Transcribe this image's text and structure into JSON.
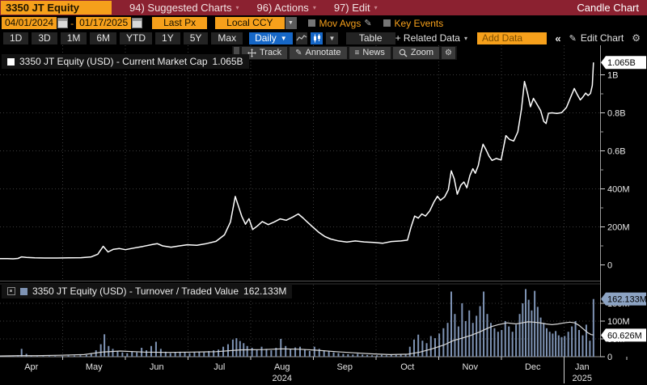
{
  "titlebar": {
    "ticker": "3350 JT Equity",
    "menus": [
      "94) Suggested Charts",
      "96) Actions",
      "97) Edit"
    ],
    "right_label": "Candle Chart"
  },
  "controls": {
    "date_from": "04/01/2024",
    "date_sep": "-",
    "date_to": "01/17/2025",
    "price_field": "Last Px",
    "currency": "Local CCY",
    "mov_avgs": "Mov Avgs",
    "key_events": "Key Events"
  },
  "ranges": [
    "1D",
    "3D",
    "1M",
    "6M",
    "YTD",
    "1Y",
    "5Y",
    "Max"
  ],
  "frequency": "Daily",
  "table_label": "Table",
  "related_data": "+ Related Data",
  "add_data_placeholder": "Add Data",
  "collapse_label": "«",
  "edit_chart_label": "Edit Chart",
  "chart_tools": {
    "track": "Track",
    "annotate": "Annotate",
    "news": "News",
    "zoom": "Zoom"
  },
  "icons": {
    "dropdown": "▾",
    "dropdown_solid": "▼",
    "pencil": "✎",
    "gear": "⚙",
    "news_lines": "≡",
    "collapse": "«"
  },
  "main_panel": {
    "legend_text": "3350 JT Equity (USD) - Current Market Cap",
    "legend_value": "1.065B",
    "last_badge": "1.065B"
  },
  "volume_panel": {
    "legend_text": "3350 JT Equity (USD) - Turnover / Traded Value",
    "legend_value": "162.133M",
    "last_badge": "162.133M",
    "ma_badge": "60.626M"
  },
  "chart_data": [
    {
      "type": "line",
      "title": "3350 JT Equity (USD) - Current Market Cap",
      "unit": "USD, millions",
      "x_range": [
        "04/01/2024",
        "01/17/2025"
      ],
      "ylim": [
        0,
        1100
      ],
      "grid": true,
      "last_value": 1065,
      "last_value_label": "1.065B",
      "months": [
        "Apr",
        "May",
        "Jun",
        "Jul",
        "Aug",
        "Sep",
        "Oct",
        "Nov",
        "Dec",
        "Jan"
      ],
      "year_labels": [
        {
          "month_index": 4,
          "label": "2024"
        },
        {
          "month_index": 9,
          "label": "2025"
        }
      ],
      "y_ticks": [
        {
          "value": 1000,
          "label": "1B"
        },
        {
          "value": 800,
          "label": "0.8B"
        },
        {
          "value": 600,
          "label": "0.6B"
        },
        {
          "value": 400,
          "label": "400M"
        },
        {
          "value": 200,
          "label": "200M"
        },
        {
          "value": 0,
          "label": "0"
        }
      ],
      "y_minor_ticks": [
        100,
        300,
        500,
        700,
        900
      ],
      "points": [
        [
          0.0,
          33
        ],
        [
          0.012,
          33
        ],
        [
          0.022,
          32
        ],
        [
          0.03,
          34
        ],
        [
          0.036,
          42
        ],
        [
          0.044,
          39
        ],
        [
          0.058,
          37
        ],
        [
          0.075,
          36
        ],
        [
          0.095,
          36
        ],
        [
          0.115,
          37
        ],
        [
          0.135,
          38
        ],
        [
          0.152,
          42
        ],
        [
          0.163,
          56
        ],
        [
          0.172,
          98
        ],
        [
          0.18,
          68
        ],
        [
          0.189,
          82
        ],
        [
          0.199,
          86
        ],
        [
          0.209,
          80
        ],
        [
          0.222,
          88
        ],
        [
          0.238,
          97
        ],
        [
          0.255,
          108
        ],
        [
          0.262,
          112
        ],
        [
          0.271,
          100
        ],
        [
          0.285,
          93
        ],
        [
          0.299,
          100
        ],
        [
          0.312,
          106
        ],
        [
          0.328,
          103
        ],
        [
          0.344,
          112
        ],
        [
          0.36,
          124
        ],
        [
          0.374,
          158
        ],
        [
          0.384,
          225
        ],
        [
          0.392,
          360
        ],
        [
          0.397,
          312
        ],
        [
          0.403,
          255
        ],
        [
          0.409,
          214
        ],
        [
          0.415,
          243
        ],
        [
          0.421,
          186
        ],
        [
          0.429,
          205
        ],
        [
          0.437,
          228
        ],
        [
          0.447,
          212
        ],
        [
          0.457,
          226
        ],
        [
          0.467,
          242
        ],
        [
          0.477,
          235
        ],
        [
          0.488,
          252
        ],
        [
          0.497,
          268
        ],
        [
          0.505,
          247
        ],
        [
          0.512,
          226
        ],
        [
          0.522,
          197
        ],
        [
          0.531,
          172
        ],
        [
          0.541,
          150
        ],
        [
          0.551,
          136
        ],
        [
          0.563,
          127
        ],
        [
          0.578,
          120
        ],
        [
          0.592,
          126
        ],
        [
          0.607,
          121
        ],
        [
          0.623,
          118
        ],
        [
          0.638,
          114
        ],
        [
          0.652,
          123
        ],
        [
          0.668,
          126
        ],
        [
          0.679,
          130
        ],
        [
          0.685,
          200
        ],
        [
          0.691,
          257
        ],
        [
          0.697,
          246
        ],
        [
          0.703,
          268
        ],
        [
          0.709,
          257
        ],
        [
          0.716,
          284
        ],
        [
          0.723,
          330
        ],
        [
          0.729,
          361
        ],
        [
          0.734,
          340
        ],
        [
          0.741,
          358
        ],
        [
          0.747,
          395
        ],
        [
          0.752,
          495
        ],
        [
          0.757,
          452
        ],
        [
          0.762,
          372
        ],
        [
          0.768,
          420
        ],
        [
          0.773,
          436
        ],
        [
          0.778,
          406
        ],
        [
          0.783,
          470
        ],
        [
          0.788,
          506
        ],
        [
          0.792,
          482
        ],
        [
          0.797,
          523
        ],
        [
          0.801,
          585
        ],
        [
          0.805,
          635
        ],
        [
          0.81,
          606
        ],
        [
          0.815,
          572
        ],
        [
          0.82,
          550
        ],
        [
          0.827,
          560
        ],
        [
          0.835,
          552
        ],
        [
          0.843,
          680
        ],
        [
          0.849,
          660
        ],
        [
          0.856,
          652
        ],
        [
          0.863,
          700
        ],
        [
          0.869,
          820
        ],
        [
          0.874,
          965
        ],
        [
          0.879,
          905
        ],
        [
          0.884,
          832
        ],
        [
          0.889,
          876
        ],
        [
          0.893,
          855
        ],
        [
          0.897,
          833
        ],
        [
          0.901,
          812
        ],
        [
          0.906,
          755
        ],
        [
          0.91,
          744
        ],
        [
          0.914,
          798
        ],
        [
          0.92,
          800
        ],
        [
          0.928,
          797
        ],
        [
          0.936,
          801
        ],
        [
          0.944,
          828
        ],
        [
          0.951,
          882
        ],
        [
          0.957,
          928
        ],
        [
          0.962,
          896
        ],
        [
          0.967,
          868
        ],
        [
          0.971,
          882
        ],
        [
          0.976,
          904
        ],
        [
          0.98,
          891
        ],
        [
          0.984,
          902
        ],
        [
          0.987,
          945
        ],
        [
          0.989,
          1065
        ]
      ]
    },
    {
      "type": "bar",
      "title": "3350 JT Equity (USD) - Turnover / Traded Value",
      "unit": "USD, millions",
      "ylim": [
        0,
        200
      ],
      "grid": true,
      "last_value": 162.133,
      "last_value_label": "162.133M",
      "ma_last_value": 60.626,
      "ma_last_label": "60.626M",
      "y_ticks": [
        {
          "value": 150,
          "label": "150M"
        },
        {
          "value": 100,
          "label": "100M"
        },
        {
          "value": 50,
          "label": "50M"
        },
        {
          "value": 0,
          "label": "0"
        }
      ],
      "bars": [
        [
          0.002,
          2
        ],
        [
          0.012,
          3
        ],
        [
          0.022,
          2
        ],
        [
          0.03,
          4
        ],
        [
          0.036,
          22
        ],
        [
          0.044,
          8
        ],
        [
          0.052,
          3
        ],
        [
          0.062,
          2
        ],
        [
          0.072,
          2
        ],
        [
          0.082,
          2
        ],
        [
          0.092,
          2
        ],
        [
          0.104,
          2
        ],
        [
          0.114,
          3
        ],
        [
          0.124,
          3
        ],
        [
          0.134,
          4
        ],
        [
          0.144,
          5
        ],
        [
          0.152,
          8
        ],
        [
          0.16,
          18
        ],
        [
          0.168,
          35
        ],
        [
          0.174,
          63
        ],
        [
          0.181,
          30
        ],
        [
          0.188,
          22
        ],
        [
          0.196,
          15
        ],
        [
          0.204,
          12
        ],
        [
          0.212,
          10
        ],
        [
          0.22,
          14
        ],
        [
          0.228,
          12
        ],
        [
          0.236,
          25
        ],
        [
          0.244,
          18
        ],
        [
          0.252,
          30
        ],
        [
          0.26,
          42
        ],
        [
          0.268,
          22
        ],
        [
          0.276,
          14
        ],
        [
          0.284,
          10
        ],
        [
          0.292,
          12
        ],
        [
          0.3,
          14
        ],
        [
          0.308,
          12
        ],
        [
          0.316,
          10
        ],
        [
          0.324,
          12
        ],
        [
          0.332,
          14
        ],
        [
          0.34,
          12
        ],
        [
          0.348,
          16
        ],
        [
          0.356,
          18
        ],
        [
          0.364,
          20
        ],
        [
          0.372,
          28
        ],
        [
          0.38,
          35
        ],
        [
          0.388,
          48
        ],
        [
          0.394,
          52
        ],
        [
          0.4,
          44
        ],
        [
          0.406,
          38
        ],
        [
          0.412,
          30
        ],
        [
          0.42,
          25
        ],
        [
          0.428,
          20
        ],
        [
          0.436,
          28
        ],
        [
          0.444,
          22
        ],
        [
          0.452,
          18
        ],
        [
          0.46,
          25
        ],
        [
          0.468,
          50
        ],
        [
          0.476,
          30
        ],
        [
          0.484,
          22
        ],
        [
          0.492,
          26
        ],
        [
          0.5,
          28
        ],
        [
          0.508,
          20
        ],
        [
          0.516,
          16
        ],
        [
          0.524,
          28
        ],
        [
          0.532,
          22
        ],
        [
          0.54,
          18
        ],
        [
          0.548,
          15
        ],
        [
          0.556,
          12
        ],
        [
          0.564,
          10
        ],
        [
          0.572,
          8
        ],
        [
          0.58,
          7
        ],
        [
          0.588,
          6
        ],
        [
          0.596,
          8
        ],
        [
          0.604,
          6
        ],
        [
          0.612,
          5
        ],
        [
          0.62,
          4
        ],
        [
          0.628,
          4
        ],
        [
          0.636,
          5
        ],
        [
          0.644,
          4
        ],
        [
          0.652,
          6
        ],
        [
          0.66,
          5
        ],
        [
          0.668,
          6
        ],
        [
          0.676,
          8
        ],
        [
          0.683,
          28
        ],
        [
          0.69,
          48
        ],
        [
          0.697,
          62
        ],
        [
          0.704,
          45
        ],
        [
          0.711,
          38
        ],
        [
          0.718,
          58
        ],
        [
          0.725,
          52
        ],
        [
          0.732,
          65
        ],
        [
          0.739,
          80
        ],
        [
          0.746,
          95
        ],
        [
          0.752,
          183
        ],
        [
          0.758,
          120
        ],
        [
          0.764,
          85
        ],
        [
          0.77,
          150
        ],
        [
          0.776,
          100
        ],
        [
          0.782,
          130
        ],
        [
          0.788,
          95
        ],
        [
          0.794,
          115
        ],
        [
          0.8,
          142
        ],
        [
          0.806,
          183
        ],
        [
          0.812,
          120
        ],
        [
          0.818,
          95
        ],
        [
          0.824,
          80
        ],
        [
          0.83,
          70
        ],
        [
          0.836,
          75
        ],
        [
          0.842,
          100
        ],
        [
          0.848,
          85
        ],
        [
          0.854,
          70
        ],
        [
          0.86,
          90
        ],
        [
          0.866,
          120
        ],
        [
          0.871,
          150
        ],
        [
          0.876,
          190
        ],
        [
          0.881,
          160
        ],
        [
          0.886,
          130
        ],
        [
          0.891,
          185
        ],
        [
          0.896,
          140
        ],
        [
          0.901,
          110
        ],
        [
          0.906,
          95
        ],
        [
          0.911,
          80
        ],
        [
          0.916,
          70
        ],
        [
          0.921,
          65
        ],
        [
          0.926,
          72
        ],
        [
          0.931,
          60
        ],
        [
          0.936,
          55
        ],
        [
          0.941,
          58
        ],
        [
          0.947,
          70
        ],
        [
          0.953,
          85
        ],
        [
          0.959,
          100
        ],
        [
          0.965,
          75
        ],
        [
          0.971,
          60
        ],
        [
          0.977,
          90
        ],
        [
          0.983,
          45
        ],
        [
          0.989,
          162
        ]
      ],
      "ma_points": [
        [
          0.0,
          2
        ],
        [
          0.03,
          3
        ],
        [
          0.06,
          3
        ],
        [
          0.1,
          4
        ],
        [
          0.14,
          6
        ],
        [
          0.17,
          13
        ],
        [
          0.2,
          16
        ],
        [
          0.24,
          13
        ],
        [
          0.28,
          12
        ],
        [
          0.32,
          13
        ],
        [
          0.36,
          14
        ],
        [
          0.4,
          19
        ],
        [
          0.44,
          20
        ],
        [
          0.47,
          22
        ],
        [
          0.5,
          21
        ],
        [
          0.53,
          18
        ],
        [
          0.56,
          14
        ],
        [
          0.59,
          11
        ],
        [
          0.62,
          8
        ],
        [
          0.65,
          6
        ],
        [
          0.68,
          7
        ],
        [
          0.7,
          13
        ],
        [
          0.72,
          22
        ],
        [
          0.74,
          33
        ],
        [
          0.755,
          45
        ],
        [
          0.77,
          52
        ],
        [
          0.785,
          60
        ],
        [
          0.8,
          70
        ],
        [
          0.81,
          78
        ],
        [
          0.82,
          85
        ],
        [
          0.83,
          90
        ],
        [
          0.845,
          95
        ],
        [
          0.86,
          92
        ],
        [
          0.87,
          95
        ],
        [
          0.88,
          98
        ],
        [
          0.89,
          97
        ],
        [
          0.9,
          95
        ],
        [
          0.91,
          92
        ],
        [
          0.92,
          90
        ],
        [
          0.93,
          92
        ],
        [
          0.94,
          95
        ],
        [
          0.95,
          97
        ],
        [
          0.958,
          95
        ],
        [
          0.965,
          88
        ],
        [
          0.972,
          78
        ],
        [
          0.979,
          68
        ],
        [
          0.985,
          62
        ],
        [
          0.989,
          61
        ]
      ]
    }
  ]
}
